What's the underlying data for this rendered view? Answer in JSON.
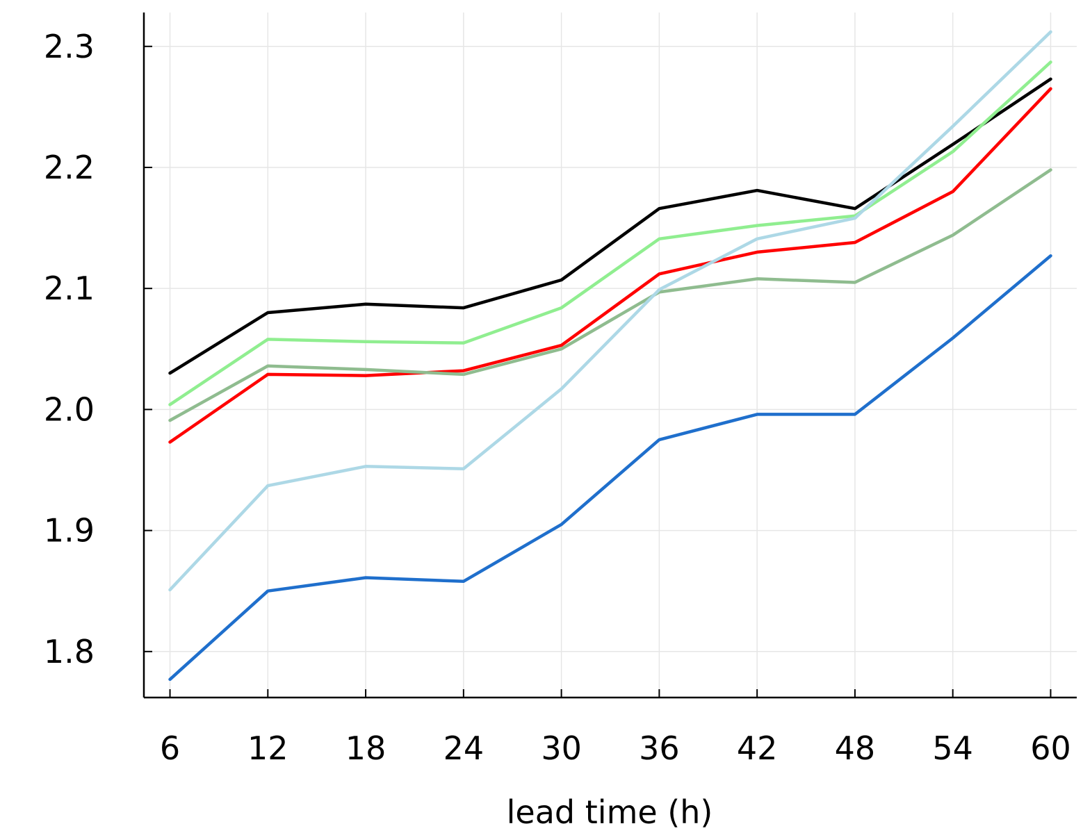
{
  "chart_data": {
    "type": "line",
    "title": "",
    "xlabel": "lead time (h)",
    "ylabel": "",
    "x": [
      6,
      12,
      18,
      24,
      30,
      36,
      42,
      48,
      54,
      60
    ],
    "xlim": [
      4.4,
      61.6
    ],
    "ylim": [
      1.762,
      2.328
    ],
    "yticks": [
      1.8,
      1.9,
      2.0,
      2.1,
      2.2,
      2.3
    ],
    "ytick_labels": [
      "1.8",
      "1.9",
      "2.0",
      "2.1",
      "2.2",
      "2.3"
    ],
    "xtick_labels": [
      "6",
      "12",
      "18",
      "24",
      "30",
      "36",
      "42",
      "48",
      "54",
      "60"
    ],
    "grid": true,
    "series": [
      {
        "color": "#000000",
        "values": [
          2.03,
          2.08,
          2.087,
          2.084,
          2.107,
          2.166,
          2.181,
          2.166,
          2.219,
          2.273
        ]
      },
      {
        "color": "#90ee90",
        "values": [
          2.004,
          2.058,
          2.056,
          2.055,
          2.084,
          2.141,
          2.152,
          2.16,
          2.213,
          2.287
        ]
      },
      {
        "color": "#ff0000",
        "values": [
          1.973,
          2.029,
          2.028,
          2.032,
          2.053,
          2.112,
          2.13,
          2.138,
          2.18,
          2.265
        ]
      },
      {
        "color": "#8fbc8f",
        "values": [
          1.991,
          2.036,
          2.033,
          2.029,
          2.05,
          2.097,
          2.108,
          2.105,
          2.144,
          2.198
        ]
      },
      {
        "color": "#add8e6",
        "values": [
          1.851,
          1.937,
          1.953,
          1.951,
          2.017,
          2.099,
          2.141,
          2.158,
          2.234,
          2.312
        ]
      },
      {
        "color": "#1f6fcc",
        "values": [
          1.777,
          1.85,
          1.861,
          1.858,
          1.905,
          1.975,
          1.996,
          1.996,
          2.059,
          2.127
        ]
      }
    ]
  }
}
